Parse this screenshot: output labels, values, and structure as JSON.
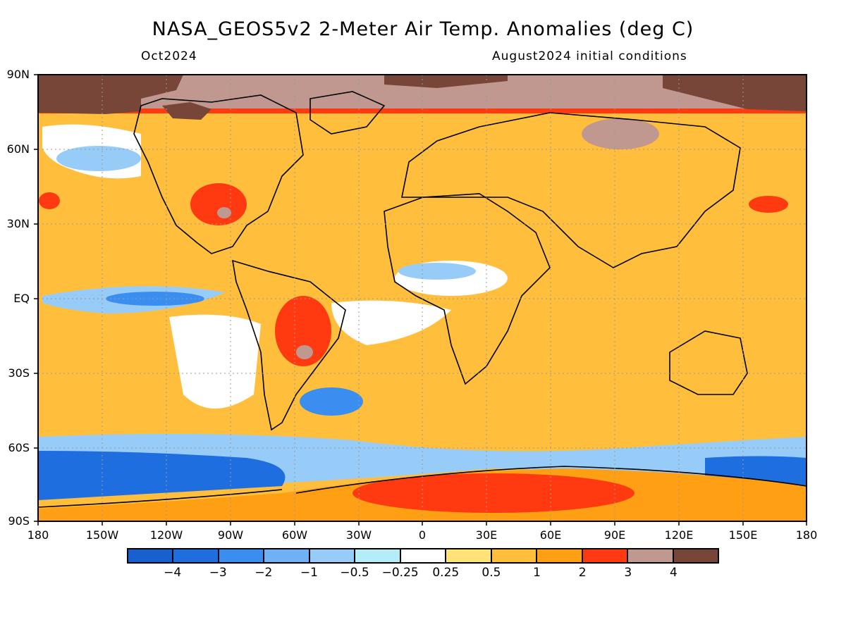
{
  "title": "NASA_GEOS5v2 2-Meter Air Temp. Anomalies (deg C)",
  "subtitle_left": "Oct2024",
  "subtitle_right": "August2024 initial conditions",
  "lat_labels": [
    "90N",
    "60N",
    "30N",
    "EQ",
    "30S",
    "60S",
    "90S"
  ],
  "lon_labels": [
    "180",
    "150W",
    "120W",
    "90W",
    "60W",
    "30W",
    "0",
    "30E",
    "60E",
    "90E",
    "120E",
    "150E",
    "180"
  ],
  "colorbar": {
    "colors": [
      "#1660d0",
      "#1e6ee0",
      "#3a8ef0",
      "#70b0f4",
      "#98ccf8",
      "#b4ecf8",
      "#ffffff",
      "#ffe278",
      "#ffbe3c",
      "#ffa014",
      "#ff3a10",
      "#c09890",
      "#784638"
    ],
    "labels": [
      "−4",
      "−3",
      "−2",
      "−1",
      "−0.5",
      "−0.25",
      "0.25",
      "0.5",
      "1",
      "2",
      "3",
      "4"
    ]
  },
  "chart_data": {
    "type": "heatmap",
    "title": "NASA_GEOS5v2 2-Meter Air Temp. Anomalies (deg C)",
    "subtitle": "Oct2024",
    "xlabel": "",
    "ylabel": "",
    "xlim": [
      -180,
      180
    ],
    "ylim": [
      -90,
      90
    ],
    "x_ticks": [
      "180",
      "150W",
      "120W",
      "90W",
      "60W",
      "30W",
      "0",
      "30E",
      "60E",
      "90E",
      "120E",
      "150E",
      "180"
    ],
    "y_ticks": [
      "90N",
      "60N",
      "30N",
      "EQ",
      "30S",
      "60S",
      "90S"
    ],
    "grid": true,
    "colorbar_levels": [
      -4,
      -3,
      -2,
      -1,
      -0.5,
      -0.25,
      0.25,
      0.5,
      1,
      2,
      3,
      4
    ],
    "colorbar_units": "deg C"
  }
}
